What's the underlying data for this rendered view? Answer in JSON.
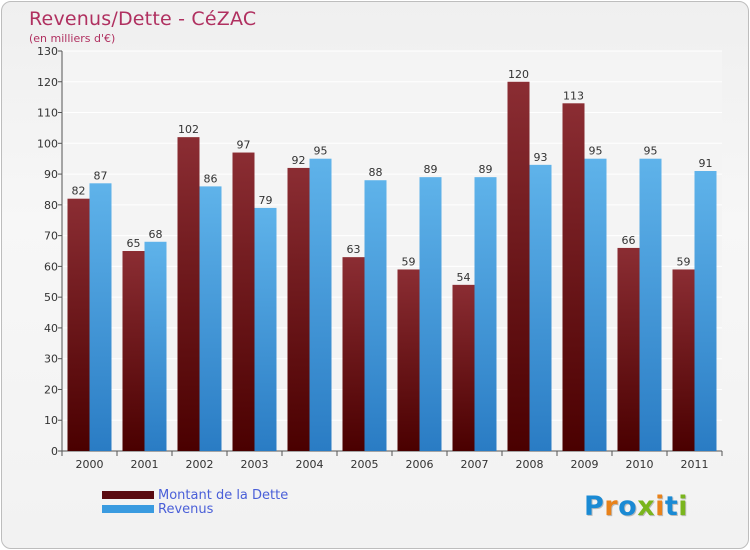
{
  "title": "Revenus/Dette - CéZAC",
  "subtitle": "(en milliers d'€)",
  "logo": {
    "text": "Proxiti",
    "colors": [
      "#1a8ad4",
      "#e8821a",
      "#1a8ad4",
      "#7ab51d",
      "#e8821a",
      "#1a8ad4",
      "#7ab51d"
    ]
  },
  "chart_data": {
    "type": "bar",
    "categories": [
      "2000",
      "2001",
      "2002",
      "2003",
      "2004",
      "2005",
      "2006",
      "2007",
      "2008",
      "2009",
      "2010",
      "2011"
    ],
    "series": [
      {
        "name": "Montant de la Dette",
        "color": "#7a1c22",
        "values": [
          82,
          65,
          102,
          97,
          92,
          63,
          59,
          54,
          120,
          113,
          66,
          59
        ]
      },
      {
        "name": "Revenus",
        "color": "#3a9be0",
        "values": [
          87,
          68,
          86,
          79,
          95,
          88,
          89,
          89,
          93,
          95,
          95,
          91
        ]
      }
    ],
    "ylim": [
      0,
      130
    ],
    "yticks": [
      0,
      10,
      20,
      30,
      40,
      50,
      60,
      70,
      80,
      90,
      100,
      110,
      120,
      130
    ],
    "grid": true,
    "legend": "bottom-left"
  }
}
